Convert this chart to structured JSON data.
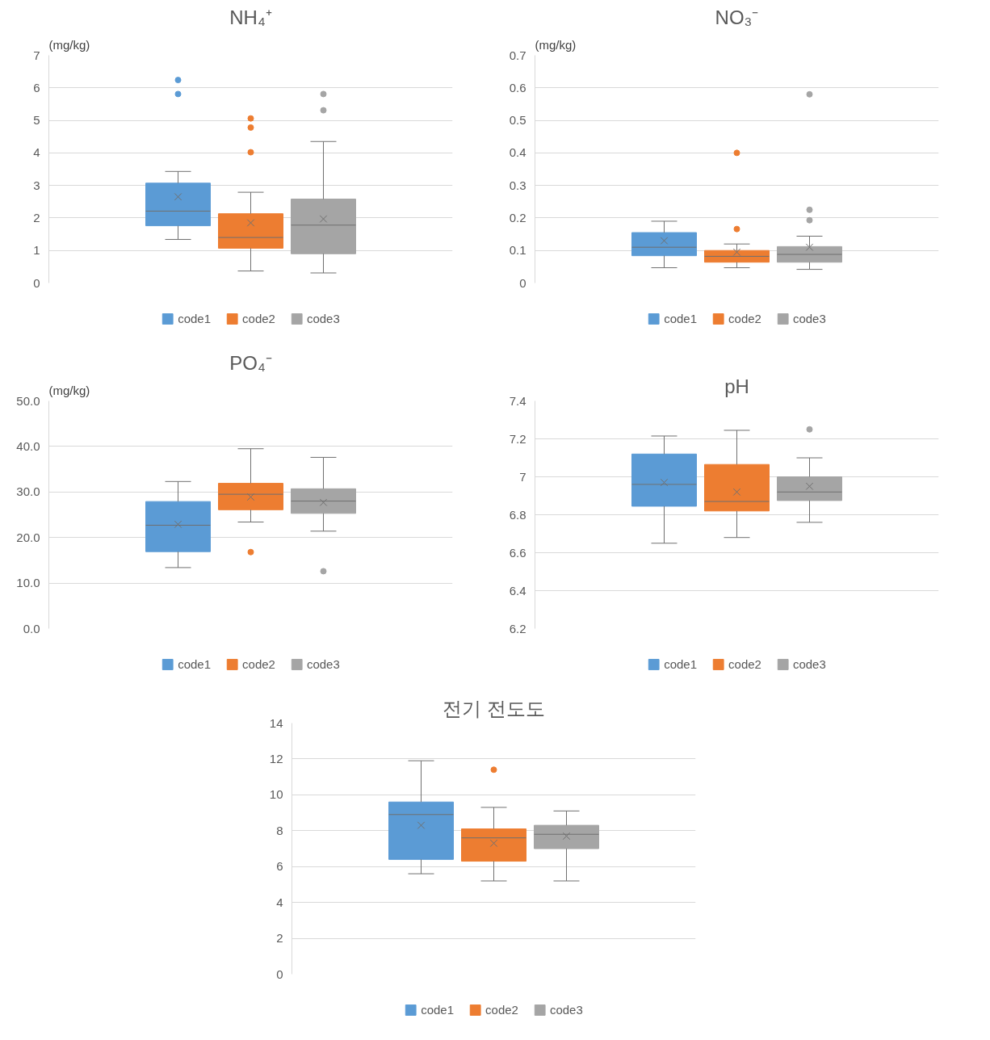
{
  "chart_data": [
    {
      "type": "box",
      "title": "NH₄⁺",
      "ylabel": "(mg/kg)",
      "categories": [
        null
      ],
      "ylim": [
        0,
        7
      ],
      "yticks": [
        0,
        1,
        2,
        3,
        4,
        5,
        6,
        7
      ],
      "grid": "y",
      "legend": "bottom",
      "tick_labels": "y",
      "series": [
        {
          "name": "code1",
          "color": "#5b9bd5",
          "boxes": [
            {
              "low": 1.34,
              "q1": 1.76,
              "median": 2.21,
              "q3": 3.07,
              "high": 3.43,
              "mean": 2.65,
              "outliers": [
                6.24,
                5.81
              ]
            }
          ]
        },
        {
          "name": "code2",
          "color": "#ed7d31",
          "boxes": [
            {
              "low": 0.37,
              "q1": 1.07,
              "median": 1.4,
              "q3": 2.13,
              "high": 2.79,
              "mean": 1.85,
              "outliers": [
                5.06,
                4.78,
                4.02
              ]
            }
          ]
        },
        {
          "name": "code3",
          "color": "#a5a5a5",
          "boxes": [
            {
              "low": 0.31,
              "q1": 0.9,
              "median": 1.78,
              "q3": 2.58,
              "high": 4.35,
              "mean": 1.97,
              "outliers": [
                5.81,
                5.31
              ]
            }
          ]
        }
      ]
    },
    {
      "type": "box",
      "title": "NO₃⁻",
      "ylabel": "(mg/kg)",
      "categories": [
        null
      ],
      "ylim": [
        0,
        0.7
      ],
      "yticks": [
        0,
        0.1,
        0.2,
        0.3,
        0.4,
        0.5,
        0.6,
        0.7
      ],
      "grid": "y",
      "legend": "bottom",
      "tick_labels": "y",
      "series": [
        {
          "name": "code1",
          "color": "#5b9bd5",
          "boxes": [
            {
              "low": 0.047,
              "q1": 0.084,
              "median": 0.11,
              "q3": 0.155,
              "high": 0.19,
              "mean": 0.13
            }
          ]
        },
        {
          "name": "code2",
          "color": "#ed7d31",
          "boxes": [
            {
              "low": 0.047,
              "q1": 0.064,
              "median": 0.082,
              "q3": 0.1,
              "high": 0.12,
              "mean": 0.095,
              "outliers": [
                0.4,
                0.166
              ]
            }
          ]
        },
        {
          "name": "code3",
          "color": "#a5a5a5",
          "boxes": [
            {
              "low": 0.042,
              "q1": 0.064,
              "median": 0.088,
              "q3": 0.112,
              "high": 0.144,
              "mean": 0.11,
              "outliers": [
                0.58,
                0.225,
                0.193
              ]
            }
          ]
        }
      ]
    },
    {
      "type": "box",
      "title": "PO₄⁻",
      "ylabel": "(mg/kg)",
      "categories": [
        null
      ],
      "ylim": [
        0,
        50
      ],
      "yticks": [
        {
          "value": 0,
          "label": "0.0"
        },
        {
          "value": 10,
          "label": "10.0"
        },
        {
          "value": 20,
          "label": "20.0"
        },
        {
          "value": 30,
          "label": "30.0"
        },
        {
          "value": 40,
          "label": "40.0"
        },
        {
          "value": 50,
          "label": "50.0"
        }
      ],
      "grid": "y",
      "legend": "bottom",
      "tick_labels": "y",
      "series": [
        {
          "name": "code1",
          "color": "#5b9bd5",
          "boxes": [
            {
              "low": 13.4,
              "q1": 16.9,
              "median": 22.7,
              "q3": 27.9,
              "high": 32.3,
              "mean": 22.9
            }
          ]
        },
        {
          "name": "code2",
          "color": "#ed7d31",
          "boxes": [
            {
              "low": 23.4,
              "q1": 26.1,
              "median": 29.5,
              "q3": 31.9,
              "high": 39.5,
              "mean": 28.9,
              "outliers": [
                16.8
              ]
            }
          ]
        },
        {
          "name": "code3",
          "color": "#a5a5a5",
          "boxes": [
            {
              "low": 21.4,
              "q1": 25.3,
              "median": 28.0,
              "q3": 30.7,
              "high": 37.6,
              "mean": 27.7,
              "outliers": [
                12.6
              ]
            }
          ]
        }
      ]
    },
    {
      "type": "box",
      "title": "pH",
      "categories": [
        null
      ],
      "ylim": [
        6.2,
        7.4
      ],
      "yticks": [
        6.2,
        6.4,
        6.6,
        6.8,
        7,
        7.2,
        7.4
      ],
      "grid": "y",
      "legend": "bottom",
      "tick_labels": "y",
      "series": [
        {
          "name": "code1",
          "color": "#5b9bd5",
          "boxes": [
            {
              "low": 6.65,
              "q1": 6.845,
              "median": 6.96,
              "q3": 7.12,
              "high": 7.215,
              "mean": 6.97
            }
          ]
        },
        {
          "name": "code2",
          "color": "#ed7d31",
          "boxes": [
            {
              "low": 6.68,
              "q1": 6.82,
              "median": 6.87,
              "q3": 7.065,
              "high": 7.245,
              "mean": 6.92
            }
          ]
        },
        {
          "name": "code3",
          "color": "#a5a5a5",
          "boxes": [
            {
              "low": 6.76,
              "q1": 6.875,
              "median": 6.92,
              "q3": 7.0,
              "high": 7.1,
              "mean": 6.95,
              "outliers": [
                7.25
              ]
            }
          ]
        }
      ]
    },
    {
      "type": "box",
      "title": "전기 전도도",
      "categories": [
        null
      ],
      "ylim": [
        0,
        14
      ],
      "yticks": [
        0,
        2,
        4,
        6,
        8,
        10,
        12,
        14
      ],
      "grid": "y",
      "legend": "bottom",
      "tick_labels": "y",
      "series": [
        {
          "name": "code1",
          "color": "#5b9bd5",
          "boxes": [
            {
              "low": 5.6,
              "q1": 6.4,
              "median": 8.9,
              "q3": 9.6,
              "high": 11.9,
              "mean": 8.3
            }
          ]
        },
        {
          "name": "code2",
          "color": "#ed7d31",
          "boxes": [
            {
              "low": 5.2,
              "q1": 6.3,
              "median": 7.6,
              "q3": 8.1,
              "high": 9.3,
              "mean": 7.3,
              "outliers": [
                11.4
              ]
            }
          ]
        },
        {
          "name": "code3",
          "color": "#a5a5a5",
          "boxes": [
            {
              "low": 5.2,
              "q1": 7.0,
              "median": 7.8,
              "q3": 8.3,
              "high": 9.1,
              "mean": 7.7
            }
          ]
        }
      ]
    }
  ]
}
